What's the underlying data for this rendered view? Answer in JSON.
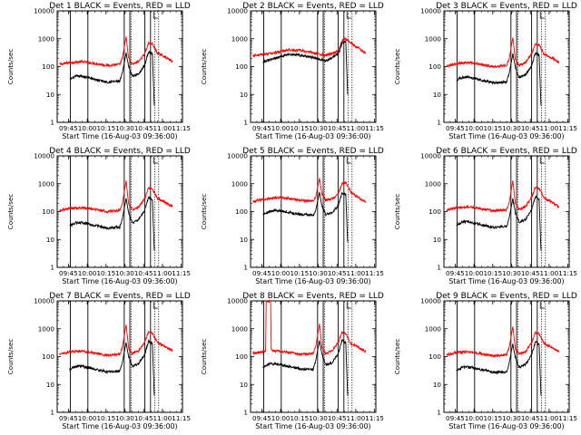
{
  "figure": {
    "x_axis_title": "Start Time (16-Aug-03 09:36:00)",
    "y_axis_title": "Counts/sec",
    "title_prefix": "Det",
    "title_suffix": " BLACK = Events, RED = LLD",
    "x_ticks": [
      "09:45",
      "10:00",
      "10:15",
      "10:30",
      "10:45",
      "11:00",
      "11:15"
    ],
    "y_ticks": [
      "1",
      "10",
      "100",
      "1000",
      "10000"
    ]
  },
  "chart_data": [
    {
      "type": "line",
      "detector": "1",
      "title": "Det 1",
      "legend": "BLACK = Events, RED = LLD",
      "xlabel": "Start Time (16-Aug-03 09:36:00)",
      "ylabel": "Counts/sec",
      "x_unit": "minutes since 09:36",
      "xlim": [
        0,
        100
      ],
      "ylim": [
        1,
        10000
      ],
      "yscale": "log",
      "x_ticks": [
        "09:45",
        "10:00",
        "10:15",
        "10:30",
        "10:45",
        "11:00",
        "11:15"
      ],
      "solid_markers": [
        10.5,
        24.5,
        53.5,
        58,
        70,
        74.5
      ],
      "dotted_markers": [
        59,
        78,
        81
      ],
      "series": [
        {
          "name": "LLD",
          "color": "#ff0000",
          "x": [
            2,
            10,
            20,
            30,
            40,
            50,
            52,
            55,
            57,
            60,
            65,
            70,
            73,
            76,
            80,
            85,
            92
          ],
          "y": [
            120,
            140,
            150,
            130,
            110,
            120,
            200,
            1200,
            200,
            120,
            150,
            300,
            700,
            650,
            300,
            240,
            150
          ]
        },
        {
          "name": "Events",
          "color": "#000000",
          "x": [
            10,
            15,
            20,
            30,
            40,
            50,
            52,
            55,
            57,
            60,
            65,
            70,
            73,
            76,
            77.5
          ],
          "y": [
            35,
            45,
            45,
            35,
            28,
            30,
            60,
            300,
            100,
            45,
            55,
            120,
            350,
            280,
            4
          ]
        }
      ]
    },
    {
      "type": "line",
      "detector": "2",
      "title": "Det 2",
      "legend": "BLACK = Events, RED = LLD",
      "xlabel": "Start Time (16-Aug-03 09:36:00)",
      "ylabel": "Counts/sec",
      "x_unit": "minutes since 09:36",
      "xlim": [
        0,
        100
      ],
      "ylim": [
        1,
        10000
      ],
      "yscale": "log",
      "x_ticks": [
        "09:45",
        "10:00",
        "10:15",
        "10:30",
        "10:45",
        "11:00",
        "11:15"
      ],
      "solid_markers": [
        10.5,
        24.5,
        53.5,
        58,
        70,
        74.5
      ],
      "dotted_markers": [
        59,
        78,
        81
      ],
      "series": [
        {
          "name": "LLD",
          "color": "#ff0000",
          "x": [
            2,
            10,
            20,
            30,
            40,
            50,
            60,
            70,
            73,
            76,
            80,
            85,
            92
          ],
          "y": [
            250,
            270,
            320,
            400,
            380,
            310,
            250,
            350,
            900,
            1000,
            700,
            500,
            300
          ]
        },
        {
          "name": "Events",
          "color": "#000000",
          "x": [
            10,
            20,
            30,
            40,
            50,
            60,
            70,
            73,
            76,
            77.5
          ],
          "y": [
            150,
            200,
            280,
            260,
            210,
            160,
            280,
            700,
            800,
            10
          ]
        }
      ]
    },
    {
      "type": "line",
      "detector": "3",
      "title": "Det 3",
      "legend": "BLACK = Events, RED = LLD",
      "xlabel": "Start Time (16-Aug-03 09:36:00)",
      "ylabel": "Counts/sec",
      "x_unit": "minutes since 09:36",
      "xlim": [
        0,
        100
      ],
      "ylim": [
        1,
        10000
      ],
      "yscale": "log",
      "x_ticks": [
        "09:45",
        "10:00",
        "10:15",
        "10:30",
        "10:45",
        "11:00",
        "11:15"
      ],
      "solid_markers": [
        10.5,
        24.5,
        53.5,
        58,
        70,
        74.5
      ],
      "dotted_markers": [
        59,
        78,
        81
      ],
      "series": [
        {
          "name": "LLD",
          "color": "#ff0000",
          "x": [
            2,
            10,
            20,
            30,
            40,
            50,
            52,
            55,
            57,
            60,
            65,
            70,
            73,
            76,
            80,
            85,
            92
          ],
          "y": [
            100,
            130,
            140,
            120,
            100,
            110,
            180,
            1100,
            180,
            110,
            140,
            280,
            650,
            600,
            280,
            220,
            140
          ]
        },
        {
          "name": "Events",
          "color": "#000000",
          "x": [
            10,
            15,
            20,
            30,
            40,
            50,
            52,
            55,
            57,
            60,
            65,
            70,
            73,
            76,
            77.5
          ],
          "y": [
            32,
            42,
            42,
            33,
            26,
            28,
            55,
            280,
            90,
            40,
            50,
            110,
            320,
            260,
            4
          ]
        }
      ]
    },
    {
      "type": "line",
      "detector": "4",
      "title": "Det 4",
      "legend": "BLACK = Events, RED = LLD",
      "xlabel": "Start Time (16-Aug-03 09:36:00)",
      "ylabel": "Counts/sec",
      "x_unit": "minutes since 09:36",
      "xlim": [
        0,
        100
      ],
      "ylim": [
        1,
        10000
      ],
      "yscale": "log",
      "x_ticks": [
        "09:45",
        "10:00",
        "10:15",
        "10:30",
        "10:45",
        "11:00",
        "11:15"
      ],
      "solid_markers": [
        10.5,
        24.5,
        53.5,
        58,
        70,
        74.5
      ],
      "dotted_markers": [
        59,
        78,
        81
      ],
      "series": [
        {
          "name": "LLD",
          "color": "#ff0000",
          "x": [
            2,
            10,
            20,
            30,
            40,
            50,
            52,
            55,
            57,
            60,
            65,
            70,
            73,
            76,
            80,
            85,
            92
          ],
          "y": [
            110,
            130,
            140,
            120,
            100,
            110,
            190,
            1300,
            190,
            120,
            140,
            300,
            700,
            650,
            300,
            230,
            150
          ]
        },
        {
          "name": "Events",
          "color": "#000000",
          "x": [
            10,
            15,
            20,
            30,
            40,
            50,
            52,
            55,
            57,
            60,
            65,
            70,
            73,
            76,
            77.5
          ],
          "y": [
            30,
            40,
            40,
            32,
            25,
            28,
            55,
            300,
            90,
            40,
            50,
            115,
            330,
            270,
            4
          ]
        }
      ]
    },
    {
      "type": "line",
      "detector": "5",
      "title": "Det 5",
      "legend": "BLACK = Events, RED = LLD",
      "xlabel": "Start Time (16-Aug-03 09:36:00)",
      "ylabel": "Counts/sec",
      "x_unit": "minutes since 09:36",
      "xlim": [
        0,
        100
      ],
      "ylim": [
        1,
        10000
      ],
      "yscale": "log",
      "x_ticks": [
        "09:45",
        "10:00",
        "10:15",
        "10:30",
        "10:45",
        "11:00",
        "11:15"
      ],
      "solid_markers": [
        10.5,
        24.5,
        53.5,
        58,
        70,
        74.5
      ],
      "dotted_markers": [
        59,
        78,
        81
      ],
      "series": [
        {
          "name": "LLD",
          "color": "#ff0000",
          "x": [
            2,
            10,
            20,
            30,
            40,
            50,
            52,
            55,
            57,
            60,
            65,
            70,
            73,
            76,
            80,
            85,
            92
          ],
          "y": [
            230,
            270,
            320,
            300,
            250,
            240,
            320,
            1600,
            420,
            260,
            280,
            420,
            1000,
            1100,
            500,
            350,
            220
          ]
        },
        {
          "name": "Events",
          "color": "#000000",
          "x": [
            10,
            15,
            20,
            30,
            40,
            50,
            52,
            55,
            57,
            60,
            65,
            70,
            73,
            76,
            77.5
          ],
          "y": [
            80,
            100,
            110,
            95,
            80,
            75,
            110,
            500,
            150,
            80,
            90,
            170,
            450,
            420,
            8
          ]
        }
      ]
    },
    {
      "type": "line",
      "detector": "6",
      "title": "Det 6",
      "legend": "BLACK = Events, RED = LLD",
      "xlabel": "Start Time (16-Aug-03 09:36:00)",
      "ylabel": "Counts/sec",
      "x_unit": "minutes since 09:36",
      "xlim": [
        0,
        100
      ],
      "ylim": [
        1,
        10000
      ],
      "yscale": "log",
      "x_ticks": [
        "09:45",
        "10:00",
        "10:15",
        "10:30",
        "10:45",
        "11:00",
        "11:15"
      ],
      "solid_markers": [
        10.5,
        24.5,
        53.5,
        58,
        70,
        74.5
      ],
      "dotted_markers": [
        59,
        78,
        81
      ],
      "series": [
        {
          "name": "LLD",
          "color": "#ff0000",
          "x": [
            2,
            10,
            20,
            30,
            40,
            50,
            52,
            55,
            57,
            60,
            65,
            70,
            73,
            76,
            80,
            85,
            92
          ],
          "y": [
            110,
            140,
            150,
            125,
            105,
            115,
            200,
            1300,
            200,
            120,
            150,
            320,
            750,
            680,
            300,
            230,
            150
          ]
        },
        {
          "name": "Events",
          "color": "#000000",
          "x": [
            10,
            15,
            20,
            30,
            40,
            50,
            52,
            55,
            57,
            60,
            65,
            70,
            73,
            76,
            77.5
          ],
          "y": [
            33,
            43,
            43,
            34,
            27,
            29,
            57,
            290,
            95,
            42,
            52,
            118,
            340,
            275,
            4
          ]
        }
      ]
    },
    {
      "type": "line",
      "detector": "7",
      "title": "Det 7",
      "legend": "BLACK = Events, RED = LLD",
      "xlabel": "Start Time (16-Aug-03 09:36:00)",
      "ylabel": "Counts/sec",
      "x_unit": "minutes since 09:36",
      "xlim": [
        0,
        100
      ],
      "ylim": [
        1,
        10000
      ],
      "yscale": "log",
      "x_ticks": [
        "09:45",
        "10:00",
        "10:15",
        "10:30",
        "10:45",
        "11:00",
        "11:15"
      ],
      "solid_markers": [
        10.5,
        24.5,
        53.5,
        58,
        70,
        74.5
      ],
      "dotted_markers": [
        59,
        78,
        81
      ],
      "series": [
        {
          "name": "LLD",
          "color": "#ff0000",
          "x": [
            2,
            10,
            20,
            30,
            40,
            50,
            52,
            55,
            57,
            60,
            65,
            70,
            73,
            76,
            80,
            85,
            92
          ],
          "y": [
            120,
            150,
            160,
            130,
            110,
            120,
            210,
            1400,
            210,
            130,
            160,
            330,
            800,
            700,
            320,
            240,
            160
          ]
        },
        {
          "name": "Events",
          "color": "#000000",
          "x": [
            10,
            15,
            20,
            30,
            40,
            50,
            52,
            55,
            57,
            60,
            65,
            70,
            73,
            76,
            77.5
          ],
          "y": [
            35,
            45,
            45,
            36,
            28,
            30,
            60,
            320,
            100,
            45,
            55,
            125,
            360,
            290,
            4
          ]
        }
      ]
    },
    {
      "type": "line",
      "detector": "8",
      "title": "Det 8",
      "legend": "BLACK = Events, RED = LLD",
      "xlabel": "Start Time (16-Aug-03 09:36:00)",
      "ylabel": "Counts/sec",
      "x_unit": "minutes since 09:36",
      "xlim": [
        0,
        100
      ],
      "ylim": [
        1,
        10000
      ],
      "yscale": "log",
      "x_ticks": [
        "09:45",
        "10:00",
        "10:15",
        "10:30",
        "10:45",
        "11:00",
        "11:15"
      ],
      "solid_markers": [
        10.5,
        24.5,
        53.5,
        58,
        70,
        74.5
      ],
      "dotted_markers": [
        59,
        78,
        81
      ],
      "series": [
        {
          "name": "LLD",
          "color": "#ff0000",
          "x": [
            2,
            10,
            12,
            12.5,
            16,
            16.5,
            20,
            30,
            40,
            50,
            52,
            55,
            57,
            60,
            65,
            70,
            73,
            76,
            80,
            85,
            92
          ],
          "y": [
            130,
            150,
            160,
            10000,
            10000,
            170,
            160,
            140,
            120,
            130,
            220,
            1500,
            220,
            130,
            160,
            320,
            750,
            650,
            300,
            230,
            150
          ]
        },
        {
          "name": "Events",
          "color": "#000000",
          "x": [
            10,
            15,
            20,
            30,
            40,
            50,
            52,
            55,
            57,
            60,
            65,
            70,
            73,
            76,
            77.5
          ],
          "y": [
            40,
            55,
            55,
            45,
            35,
            35,
            70,
            380,
            120,
            50,
            60,
            130,
            380,
            320,
            4
          ]
        }
      ]
    },
    {
      "type": "line",
      "detector": "9",
      "title": "Det 9",
      "legend": "BLACK = Events, RED = LLD",
      "xlabel": "Start Time (16-Aug-03 09:36:00)",
      "ylabel": "Counts/sec",
      "x_unit": "minutes since 09:36",
      "xlim": [
        0,
        100
      ],
      "ylim": [
        1,
        10000
      ],
      "yscale": "log",
      "x_ticks": [
        "09:45",
        "10:00",
        "10:15",
        "10:30",
        "10:45",
        "11:00",
        "11:15"
      ],
      "solid_markers": [
        10.5,
        24.5,
        53.5,
        58,
        70,
        74.5
      ],
      "dotted_markers": [
        59,
        78,
        81
      ],
      "series": [
        {
          "name": "LLD",
          "color": "#ff0000",
          "x": [
            2,
            10,
            20,
            30,
            40,
            50,
            52,
            55,
            57,
            60,
            65,
            70,
            73,
            76,
            80,
            85,
            92
          ],
          "y": [
            115,
            140,
            150,
            125,
            105,
            115,
            200,
            1200,
            200,
            125,
            150,
            310,
            720,
            650,
            300,
            230,
            150
          ]
        },
        {
          "name": "Events",
          "color": "#000000",
          "x": [
            10,
            15,
            20,
            30,
            40,
            50,
            52,
            55,
            57,
            60,
            65,
            70,
            73,
            76,
            77.5
          ],
          "y": [
            32,
            42,
            42,
            34,
            27,
            29,
            56,
            290,
            92,
            42,
            52,
            118,
            340,
            270,
            4
          ]
        }
      ]
    }
  ]
}
